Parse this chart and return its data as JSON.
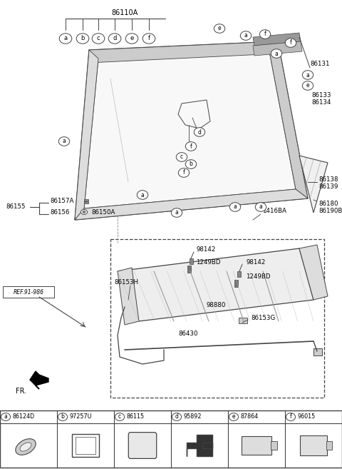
{
  "bg_color": "#ffffff",
  "lc": "#444444",
  "legend_items": [
    {
      "letter": "a",
      "code": "86124D"
    },
    {
      "letter": "b",
      "code": "97257U"
    },
    {
      "letter": "c",
      "code": "86115"
    },
    {
      "letter": "d",
      "code": "95892"
    },
    {
      "letter": "e",
      "code": "87864"
    },
    {
      "letter": "f",
      "code": "96015"
    }
  ],
  "top_label": "86110A",
  "top_circles": [
    "a",
    "b",
    "c",
    "d",
    "e",
    "f"
  ],
  "right_labels": [
    "86131",
    "86133",
    "86134",
    "86138",
    "86139",
    "86180",
    "86190B"
  ],
  "left_labels": [
    "86155",
    "86157A",
    "86156",
    "86150A"
  ],
  "inner_labels": [
    "98142",
    "1249BD",
    "98142",
    "1249BD",
    "86153H",
    "98880",
    "86430",
    "86153G"
  ],
  "other_labels": [
    "1416BA",
    "REF.91-986"
  ]
}
